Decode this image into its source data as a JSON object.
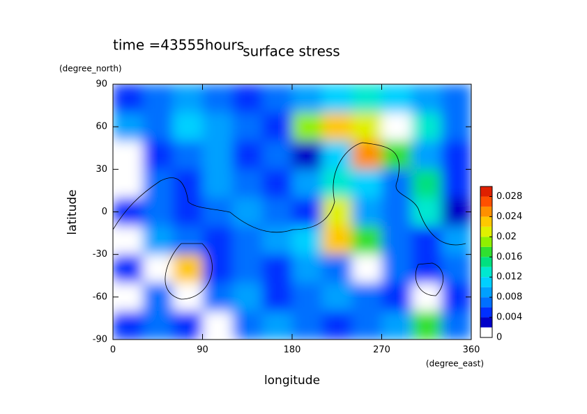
{
  "chart_data": {
    "type": "contour",
    "title": "surface stress",
    "subtitle": "time =43555hours",
    "x_label": "longitude",
    "x_unit": "(degree_east)",
    "y_label": "latitude",
    "y_unit": "(degree_north)",
    "xlim": [
      0,
      360
    ],
    "xticks": [
      0,
      90,
      180,
      270,
      360
    ],
    "ylim": [
      -90,
      90
    ],
    "yticks": [
      -90,
      -60,
      -30,
      0,
      30,
      60,
      90
    ],
    "x": [
      15,
      45,
      75,
      105,
      135,
      165,
      195,
      225,
      255,
      285,
      315,
      345
    ],
    "y": [
      80,
      60,
      40,
      20,
      0,
      -20,
      -40,
      -60,
      -80
    ],
    "z": [
      [
        0.004,
        0.006,
        0.008,
        0.006,
        0.004,
        0.006,
        0.008,
        0.01,
        0.012,
        0.01,
        0.008,
        0.006
      ],
      [
        0.008,
        0.006,
        0.01,
        0.008,
        0.006,
        0.004,
        0.018,
        0.022,
        0.02,
        0.001,
        0.012,
        0.006
      ],
      [
        0.001,
        0.004,
        0.006,
        0.008,
        0.004,
        0.006,
        0.002,
        0.01,
        0.024,
        0.016,
        0.008,
        0.004
      ],
      [
        0.001,
        0.006,
        0.004,
        0.008,
        0.006,
        0.004,
        0.008,
        0.012,
        0.01,
        0.006,
        0.014,
        0.004
      ],
      [
        0.004,
        0.006,
        0.004,
        0.006,
        0.008,
        0.006,
        0.004,
        0.02,
        0.008,
        0.006,
        0.012,
        0.002
      ],
      [
        0.001,
        0.008,
        0.006,
        0.004,
        0.006,
        0.008,
        0.01,
        0.022,
        0.016,
        0.006,
        0.004,
        0.008
      ],
      [
        0.004,
        0.001,
        0.022,
        0.004,
        0.006,
        0.004,
        0.008,
        0.006,
        0.001,
        0.006,
        0.004,
        0.006
      ],
      [
        0.001,
        0.006,
        0.001,
        0.006,
        0.008,
        0.004,
        0.006,
        0.008,
        0.006,
        0.004,
        0.001,
        0.004
      ],
      [
        0.004,
        0.006,
        0.004,
        0.001,
        0.006,
        0.008,
        0.006,
        0.004,
        0.006,
        0.008,
        0.016,
        0.006
      ]
    ],
    "levels": [
      0,
      0.002,
      0.004,
      0.006,
      0.008,
      0.01,
      0.012,
      0.014,
      0.016,
      0.018,
      0.02,
      0.022,
      0.024,
      0.026,
      0.028,
      0.03
    ],
    "colors": [
      "#ffffff",
      "#0000c8",
      "#0030ff",
      "#0070ff",
      "#00a0ff",
      "#00d0ff",
      "#00e8d0",
      "#00e080",
      "#30e030",
      "#90f000",
      "#e0f000",
      "#ffc800",
      "#ff9000",
      "#ff5000",
      "#e02000"
    ],
    "colorbar_ticks": [
      0,
      0.004,
      0.008,
      0.012,
      0.016,
      0.02,
      0.024,
      0.028
    ]
  }
}
